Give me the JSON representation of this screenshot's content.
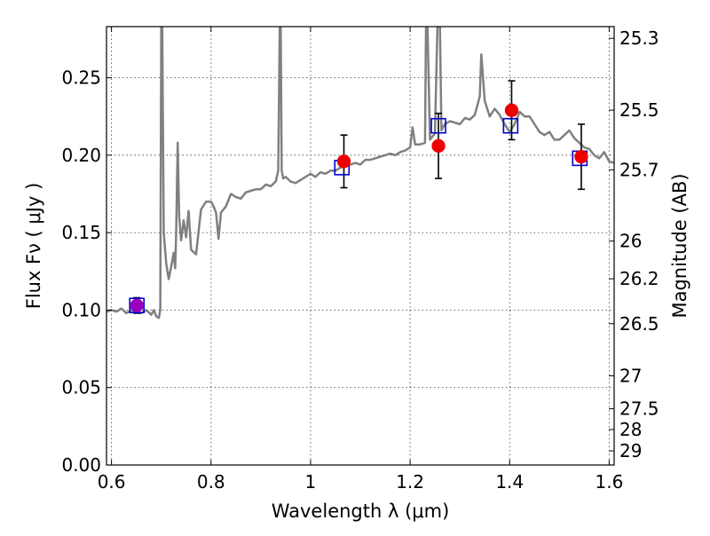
{
  "chart_data": {
    "type": "scatter",
    "title": "",
    "xlabel": "Wavelength  λ (μm)",
    "ylabel": "Flux  Fν ( μJy )",
    "y2label": "Magnitude (AB)",
    "xlim": [
      0.59,
      1.61
    ],
    "ylim": [
      0.0,
      0.283
    ],
    "grid": true,
    "x_ticks": [
      0.6,
      0.8,
      1.0,
      1.2,
      1.4,
      1.6
    ],
    "x_tick_labels": [
      "0.6",
      "0.8",
      "1",
      "1.2",
      "1.4",
      "1.6"
    ],
    "y_ticks": [
      0.0,
      0.05,
      0.1,
      0.15,
      0.2,
      0.25
    ],
    "y_tick_labels": [
      "0.00",
      "0.05",
      "0.10",
      "0.15",
      "0.20",
      "0.25"
    ],
    "y2_ticks": [
      25.3,
      25.5,
      25.7,
      26,
      26.2,
      26.5,
      27,
      27.5,
      28,
      29
    ],
    "y2_tick_labels": [
      "25.3",
      "25.5",
      "25.7",
      "26",
      "26.2",
      "26.5",
      "27",
      "27.5",
      "28",
      "29"
    ],
    "colors": {
      "sed": "#808080",
      "model_photometry": "#0000cc",
      "observed": "#ee0000",
      "observed_combined": "#9900bb",
      "errorbar": "#000000",
      "grid": "#555555"
    },
    "series": [
      {
        "type": "line",
        "x": [
          0.59,
          0.6,
          0.61,
          0.62,
          0.63,
          0.64,
          0.65,
          0.66,
          0.67,
          0.68,
          0.685,
          0.69,
          0.695,
          0.698,
          0.7,
          0.702,
          0.705,
          0.71,
          0.715,
          0.72,
          0.725,
          0.728,
          0.73,
          0.733,
          0.736,
          0.74,
          0.745,
          0.75,
          0.755,
          0.76,
          0.77,
          0.78,
          0.79,
          0.8,
          0.805,
          0.81,
          0.815,
          0.82,
          0.83,
          0.84,
          0.85,
          0.86,
          0.87,
          0.88,
          0.89,
          0.9,
          0.91,
          0.92,
          0.93,
          0.935,
          0.938,
          0.94,
          0.942,
          0.945,
          0.95,
          0.96,
          0.97,
          0.98,
          0.99,
          1.0,
          1.01,
          1.02,
          1.03,
          1.04,
          1.05,
          1.06,
          1.07,
          1.08,
          1.09,
          1.1,
          1.11,
          1.12,
          1.13,
          1.14,
          1.15,
          1.16,
          1.17,
          1.18,
          1.19,
          1.2,
          1.205,
          1.21,
          1.22,
          1.23,
          1.232,
          1.235,
          1.24,
          1.245,
          1.25,
          1.255,
          1.26,
          1.263,
          1.266,
          1.27,
          1.28,
          1.29,
          1.3,
          1.31,
          1.32,
          1.33,
          1.34,
          1.343,
          1.35,
          1.36,
          1.37,
          1.38,
          1.39,
          1.4,
          1.41,
          1.42,
          1.43,
          1.44,
          1.45,
          1.46,
          1.47,
          1.48,
          1.49,
          1.5,
          1.51,
          1.52,
          1.53,
          1.54,
          1.55,
          1.56,
          1.57,
          1.58,
          1.59,
          1.6,
          1.61
        ],
        "y": [
          0.099,
          0.1,
          0.099,
          0.101,
          0.098,
          0.1,
          0.099,
          0.098,
          0.1,
          0.097,
          0.1,
          0.096,
          0.095,
          0.1,
          0.283,
          0.283,
          0.15,
          0.13,
          0.12,
          0.128,
          0.137,
          0.127,
          0.15,
          0.208,
          0.16,
          0.145,
          0.158,
          0.147,
          0.164,
          0.139,
          0.136,
          0.165,
          0.17,
          0.17,
          0.167,
          0.163,
          0.146,
          0.163,
          0.167,
          0.175,
          0.173,
          0.172,
          0.176,
          0.177,
          0.178,
          0.178,
          0.181,
          0.18,
          0.183,
          0.19,
          0.283,
          0.283,
          0.19,
          0.185,
          0.186,
          0.183,
          0.182,
          0.184,
          0.186,
          0.188,
          0.186,
          0.189,
          0.188,
          0.19,
          0.19,
          0.192,
          0.193,
          0.194,
          0.195,
          0.194,
          0.197,
          0.197,
          0.198,
          0.199,
          0.2,
          0.201,
          0.2,
          0.202,
          0.203,
          0.205,
          0.218,
          0.207,
          0.207,
          0.208,
          0.283,
          0.283,
          0.21,
          0.212,
          0.214,
          0.283,
          0.283,
          0.216,
          0.218,
          0.22,
          0.222,
          0.221,
          0.22,
          0.224,
          0.223,
          0.226,
          0.238,
          0.265,
          0.235,
          0.225,
          0.23,
          0.226,
          0.22,
          0.215,
          0.22,
          0.228,
          0.225,
          0.225,
          0.22,
          0.215,
          0.213,
          0.215,
          0.21,
          0.21,
          0.213,
          0.216,
          0.211,
          0.208,
          0.205,
          0.204,
          0.2,
          0.198,
          0.202,
          0.196,
          0.195
        ]
      },
      {
        "type": "scatter",
        "marker": "square",
        "x": [
          0.651,
          1.063,
          1.257,
          1.402,
          1.541
        ],
        "y": [
          0.103,
          0.192,
          0.219,
          0.219,
          0.198
        ]
      },
      {
        "type": "scatter",
        "marker": "circle",
        "x": [
          1.067,
          1.257,
          1.404,
          1.544
        ],
        "y": [
          0.196,
          0.206,
          0.229,
          0.199
        ],
        "yerr": [
          0.017,
          0.021,
          0.019,
          0.021
        ]
      },
      {
        "type": "scatter",
        "marker": "circle",
        "x": [
          0.651
        ],
        "y": [
          0.103
        ],
        "yerr": [
          0.005
        ]
      }
    ]
  }
}
